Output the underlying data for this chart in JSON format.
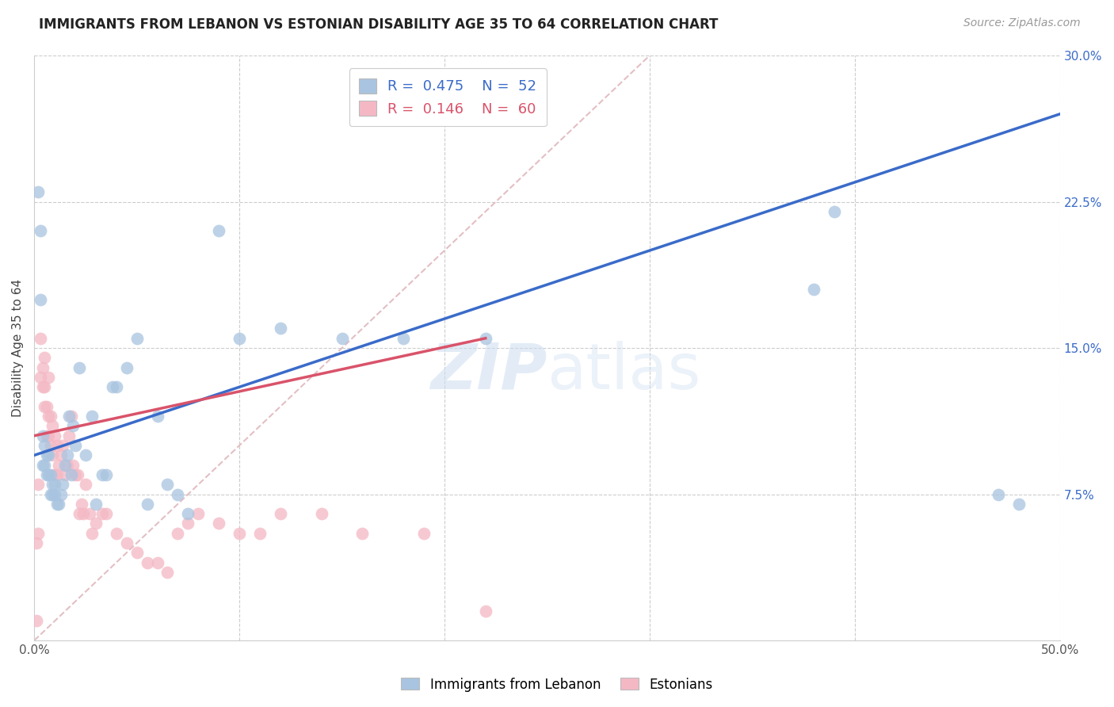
{
  "title": "IMMIGRANTS FROM LEBANON VS ESTONIAN DISABILITY AGE 35 TO 64 CORRELATION CHART",
  "source": "Source: ZipAtlas.com",
  "ylabel": "Disability Age 35 to 64",
  "xlim": [
    0.0,
    0.5
  ],
  "ylim": [
    0.0,
    0.3
  ],
  "xticks": [
    0.0,
    0.1,
    0.2,
    0.3,
    0.4,
    0.5
  ],
  "xticklabels": [
    "0.0%",
    "",
    "",
    "",
    "",
    "50.0%"
  ],
  "yticks": [
    0.0,
    0.075,
    0.15,
    0.225,
    0.3
  ],
  "yticklabels": [
    "",
    "7.5%",
    "15.0%",
    "22.5%",
    "30.0%"
  ],
  "legend_labels": [
    "Immigrants from Lebanon",
    "Estonians"
  ],
  "R_blue": 0.475,
  "N_blue": 52,
  "R_pink": 0.146,
  "N_pink": 60,
  "blue_color": "#a8c4e0",
  "pink_color": "#f4b8c4",
  "blue_line_color": "#3a6bc9",
  "pink_line_color": "#d9536a",
  "diagonal_color": "#e0b8be",
  "watermark_zip": "ZIP",
  "watermark_atlas": "atlas",
  "blue_scatter_x": [
    0.002,
    0.003,
    0.003,
    0.004,
    0.004,
    0.005,
    0.005,
    0.006,
    0.006,
    0.007,
    0.007,
    0.008,
    0.008,
    0.009,
    0.009,
    0.01,
    0.01,
    0.011,
    0.012,
    0.013,
    0.014,
    0.015,
    0.016,
    0.017,
    0.018,
    0.019,
    0.02,
    0.022,
    0.025,
    0.028,
    0.03,
    0.033,
    0.035,
    0.038,
    0.04,
    0.045,
    0.05,
    0.055,
    0.06,
    0.065,
    0.07,
    0.075,
    0.09,
    0.1,
    0.12,
    0.15,
    0.18,
    0.22,
    0.38,
    0.39,
    0.47,
    0.48
  ],
  "blue_scatter_y": [
    0.23,
    0.21,
    0.175,
    0.105,
    0.09,
    0.09,
    0.1,
    0.085,
    0.095,
    0.085,
    0.095,
    0.075,
    0.085,
    0.075,
    0.08,
    0.075,
    0.08,
    0.07,
    0.07,
    0.075,
    0.08,
    0.09,
    0.095,
    0.115,
    0.085,
    0.11,
    0.1,
    0.14,
    0.095,
    0.115,
    0.07,
    0.085,
    0.085,
    0.13,
    0.13,
    0.14,
    0.155,
    0.07,
    0.115,
    0.08,
    0.075,
    0.065,
    0.21,
    0.155,
    0.16,
    0.155,
    0.155,
    0.155,
    0.18,
    0.22,
    0.075,
    0.07
  ],
  "pink_scatter_x": [
    0.001,
    0.001,
    0.002,
    0.002,
    0.003,
    0.003,
    0.004,
    0.004,
    0.005,
    0.005,
    0.005,
    0.006,
    0.006,
    0.007,
    0.007,
    0.007,
    0.008,
    0.008,
    0.009,
    0.009,
    0.01,
    0.01,
    0.011,
    0.011,
    0.012,
    0.013,
    0.014,
    0.015,
    0.016,
    0.017,
    0.018,
    0.019,
    0.02,
    0.021,
    0.022,
    0.023,
    0.024,
    0.025,
    0.027,
    0.028,
    0.03,
    0.033,
    0.035,
    0.04,
    0.045,
    0.05,
    0.055,
    0.06,
    0.065,
    0.07,
    0.075,
    0.08,
    0.09,
    0.1,
    0.11,
    0.12,
    0.14,
    0.16,
    0.19,
    0.22
  ],
  "pink_scatter_y": [
    0.01,
    0.05,
    0.055,
    0.08,
    0.135,
    0.155,
    0.13,
    0.14,
    0.12,
    0.13,
    0.145,
    0.105,
    0.12,
    0.105,
    0.115,
    0.135,
    0.1,
    0.115,
    0.095,
    0.11,
    0.085,
    0.105,
    0.085,
    0.1,
    0.09,
    0.095,
    0.1,
    0.085,
    0.09,
    0.105,
    0.115,
    0.09,
    0.085,
    0.085,
    0.065,
    0.07,
    0.065,
    0.08,
    0.065,
    0.055,
    0.06,
    0.065,
    0.065,
    0.055,
    0.05,
    0.045,
    0.04,
    0.04,
    0.035,
    0.055,
    0.06,
    0.065,
    0.06,
    0.055,
    0.055,
    0.065,
    0.065,
    0.055,
    0.055,
    0.015
  ],
  "blue_line_x": [
    0.0,
    0.5
  ],
  "blue_line_y": [
    0.095,
    0.27
  ],
  "pink_line_x": [
    0.0,
    0.22
  ],
  "pink_line_y": [
    0.105,
    0.155
  ],
  "diag_line_x": [
    0.0,
    0.3
  ],
  "diag_line_y": [
    0.0,
    0.3
  ]
}
